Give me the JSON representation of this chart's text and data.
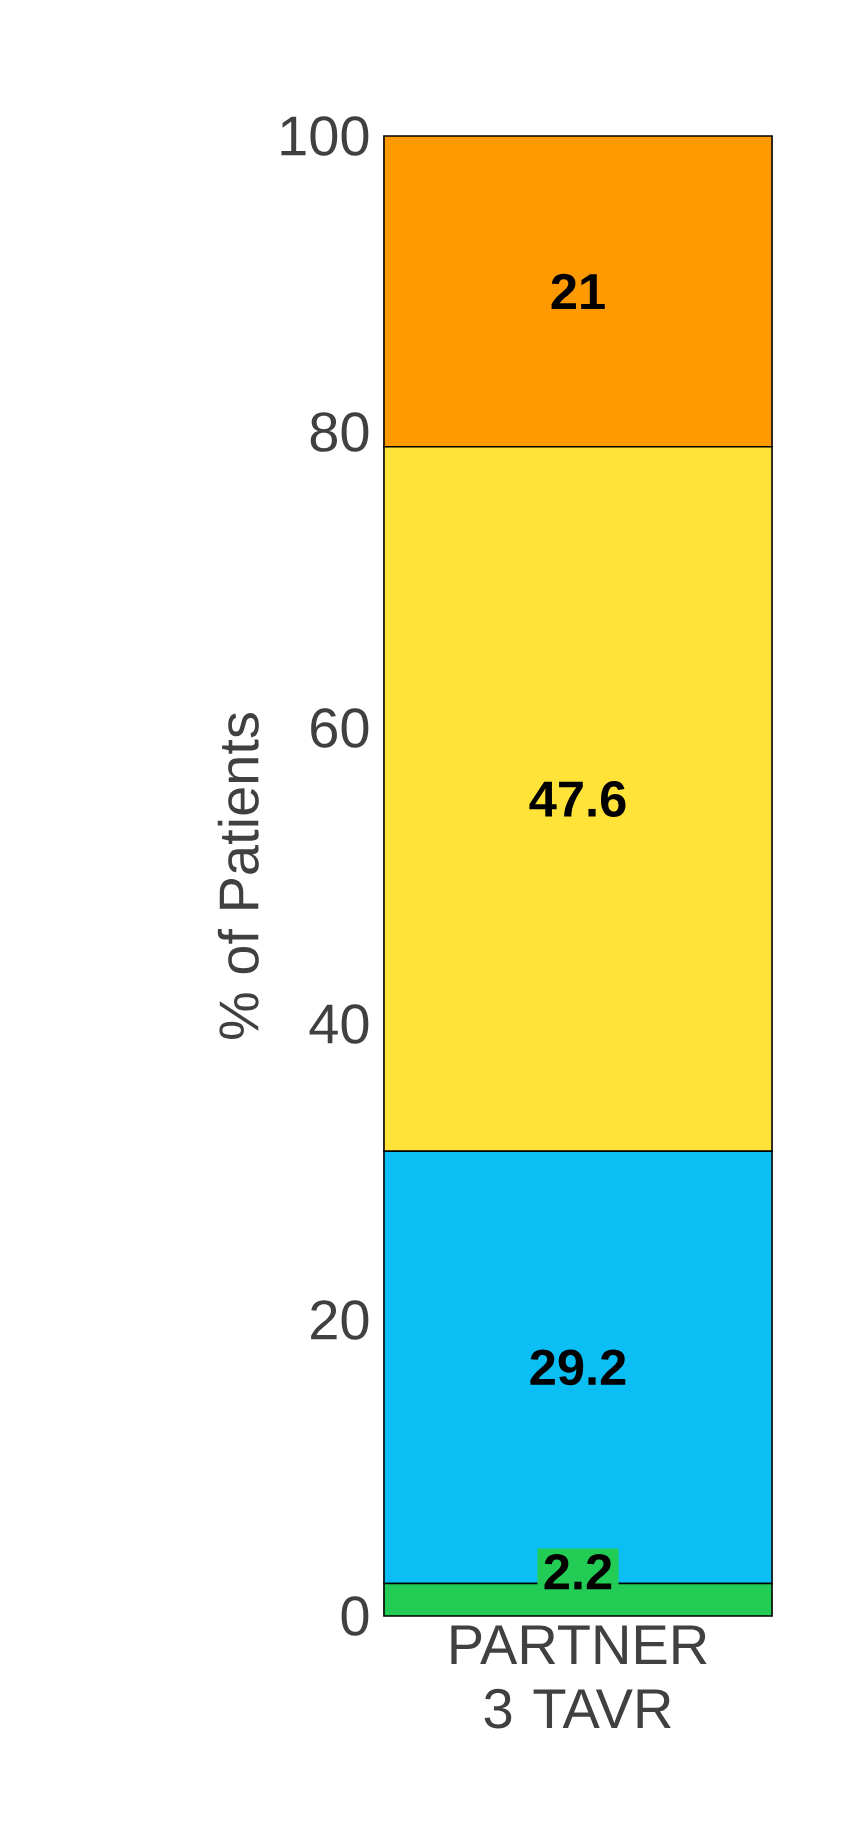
{
  "chart_data": {
    "type": "bar",
    "stacked": true,
    "ylabel": "% of Patients",
    "categories": [
      "PARTNER 3 TAVR"
    ],
    "series": [
      {
        "color": "#22cc55",
        "values": [
          2.2
        ]
      },
      {
        "color": "#0bbff5",
        "values": [
          29.2
        ]
      },
      {
        "color": "#ffe338",
        "values": [
          47.6
        ]
      },
      {
        "color": "#ff9900",
        "values": [
          21
        ]
      }
    ],
    "ylim": [
      0,
      100
    ],
    "yticks": [
      0,
      20,
      40,
      60,
      80,
      100
    ],
    "data_labels": true,
    "grid": false
  }
}
